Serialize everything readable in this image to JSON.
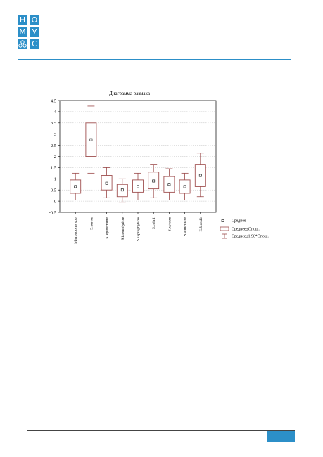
{
  "logo": {
    "letters": [
      "Н",
      "О",
      "М",
      "У",
      "",
      "С"
    ],
    "colors": {
      "accent": "#2c8fc8"
    }
  },
  "chart_data": {
    "type": "box",
    "title": "Диаграмма размаха",
    "xlabel": "",
    "ylabel": "",
    "ylim": [
      -0.5,
      4.5
    ],
    "yticks": [
      -0.5,
      0,
      0.5,
      1,
      1.5,
      2,
      2.5,
      3,
      3.5,
      4,
      4.5
    ],
    "grid": true,
    "legend_position": "bottom-right",
    "categories": [
      "Micrococcus spp.",
      "S.aureus",
      "S. epidermidis",
      "S.haemolyticus",
      "S.saprophyticus",
      "S.cohnii",
      "S.xylosus",
      "S.auricularis",
      "E.faecalis"
    ],
    "series": [
      {
        "name": "Среднее",
        "values": [
          0.65,
          2.75,
          0.8,
          0.5,
          0.65,
          0.9,
          0.75,
          0.65,
          1.15
        ]
      },
      {
        "name": "Среднее±Ст.ош.",
        "low": [
          0.35,
          2.0,
          0.5,
          0.2,
          0.4,
          0.55,
          0.4,
          0.35,
          0.65
        ],
        "high": [
          0.95,
          3.5,
          1.15,
          0.75,
          0.95,
          1.3,
          1.1,
          0.95,
          1.65
        ]
      },
      {
        "name": "Среднее±1,96*Ст.ош.",
        "low": [
          0.05,
          1.25,
          0.15,
          -0.05,
          0.05,
          0.15,
          0.05,
          0.05,
          0.2
        ],
        "high": [
          1.25,
          4.25,
          1.5,
          1.0,
          1.25,
          1.65,
          1.45,
          1.25,
          2.15
        ]
      }
    ],
    "colors": {
      "box": "#a05050",
      "whisker": "#9a4848",
      "grid": "#c0c0c0"
    }
  }
}
